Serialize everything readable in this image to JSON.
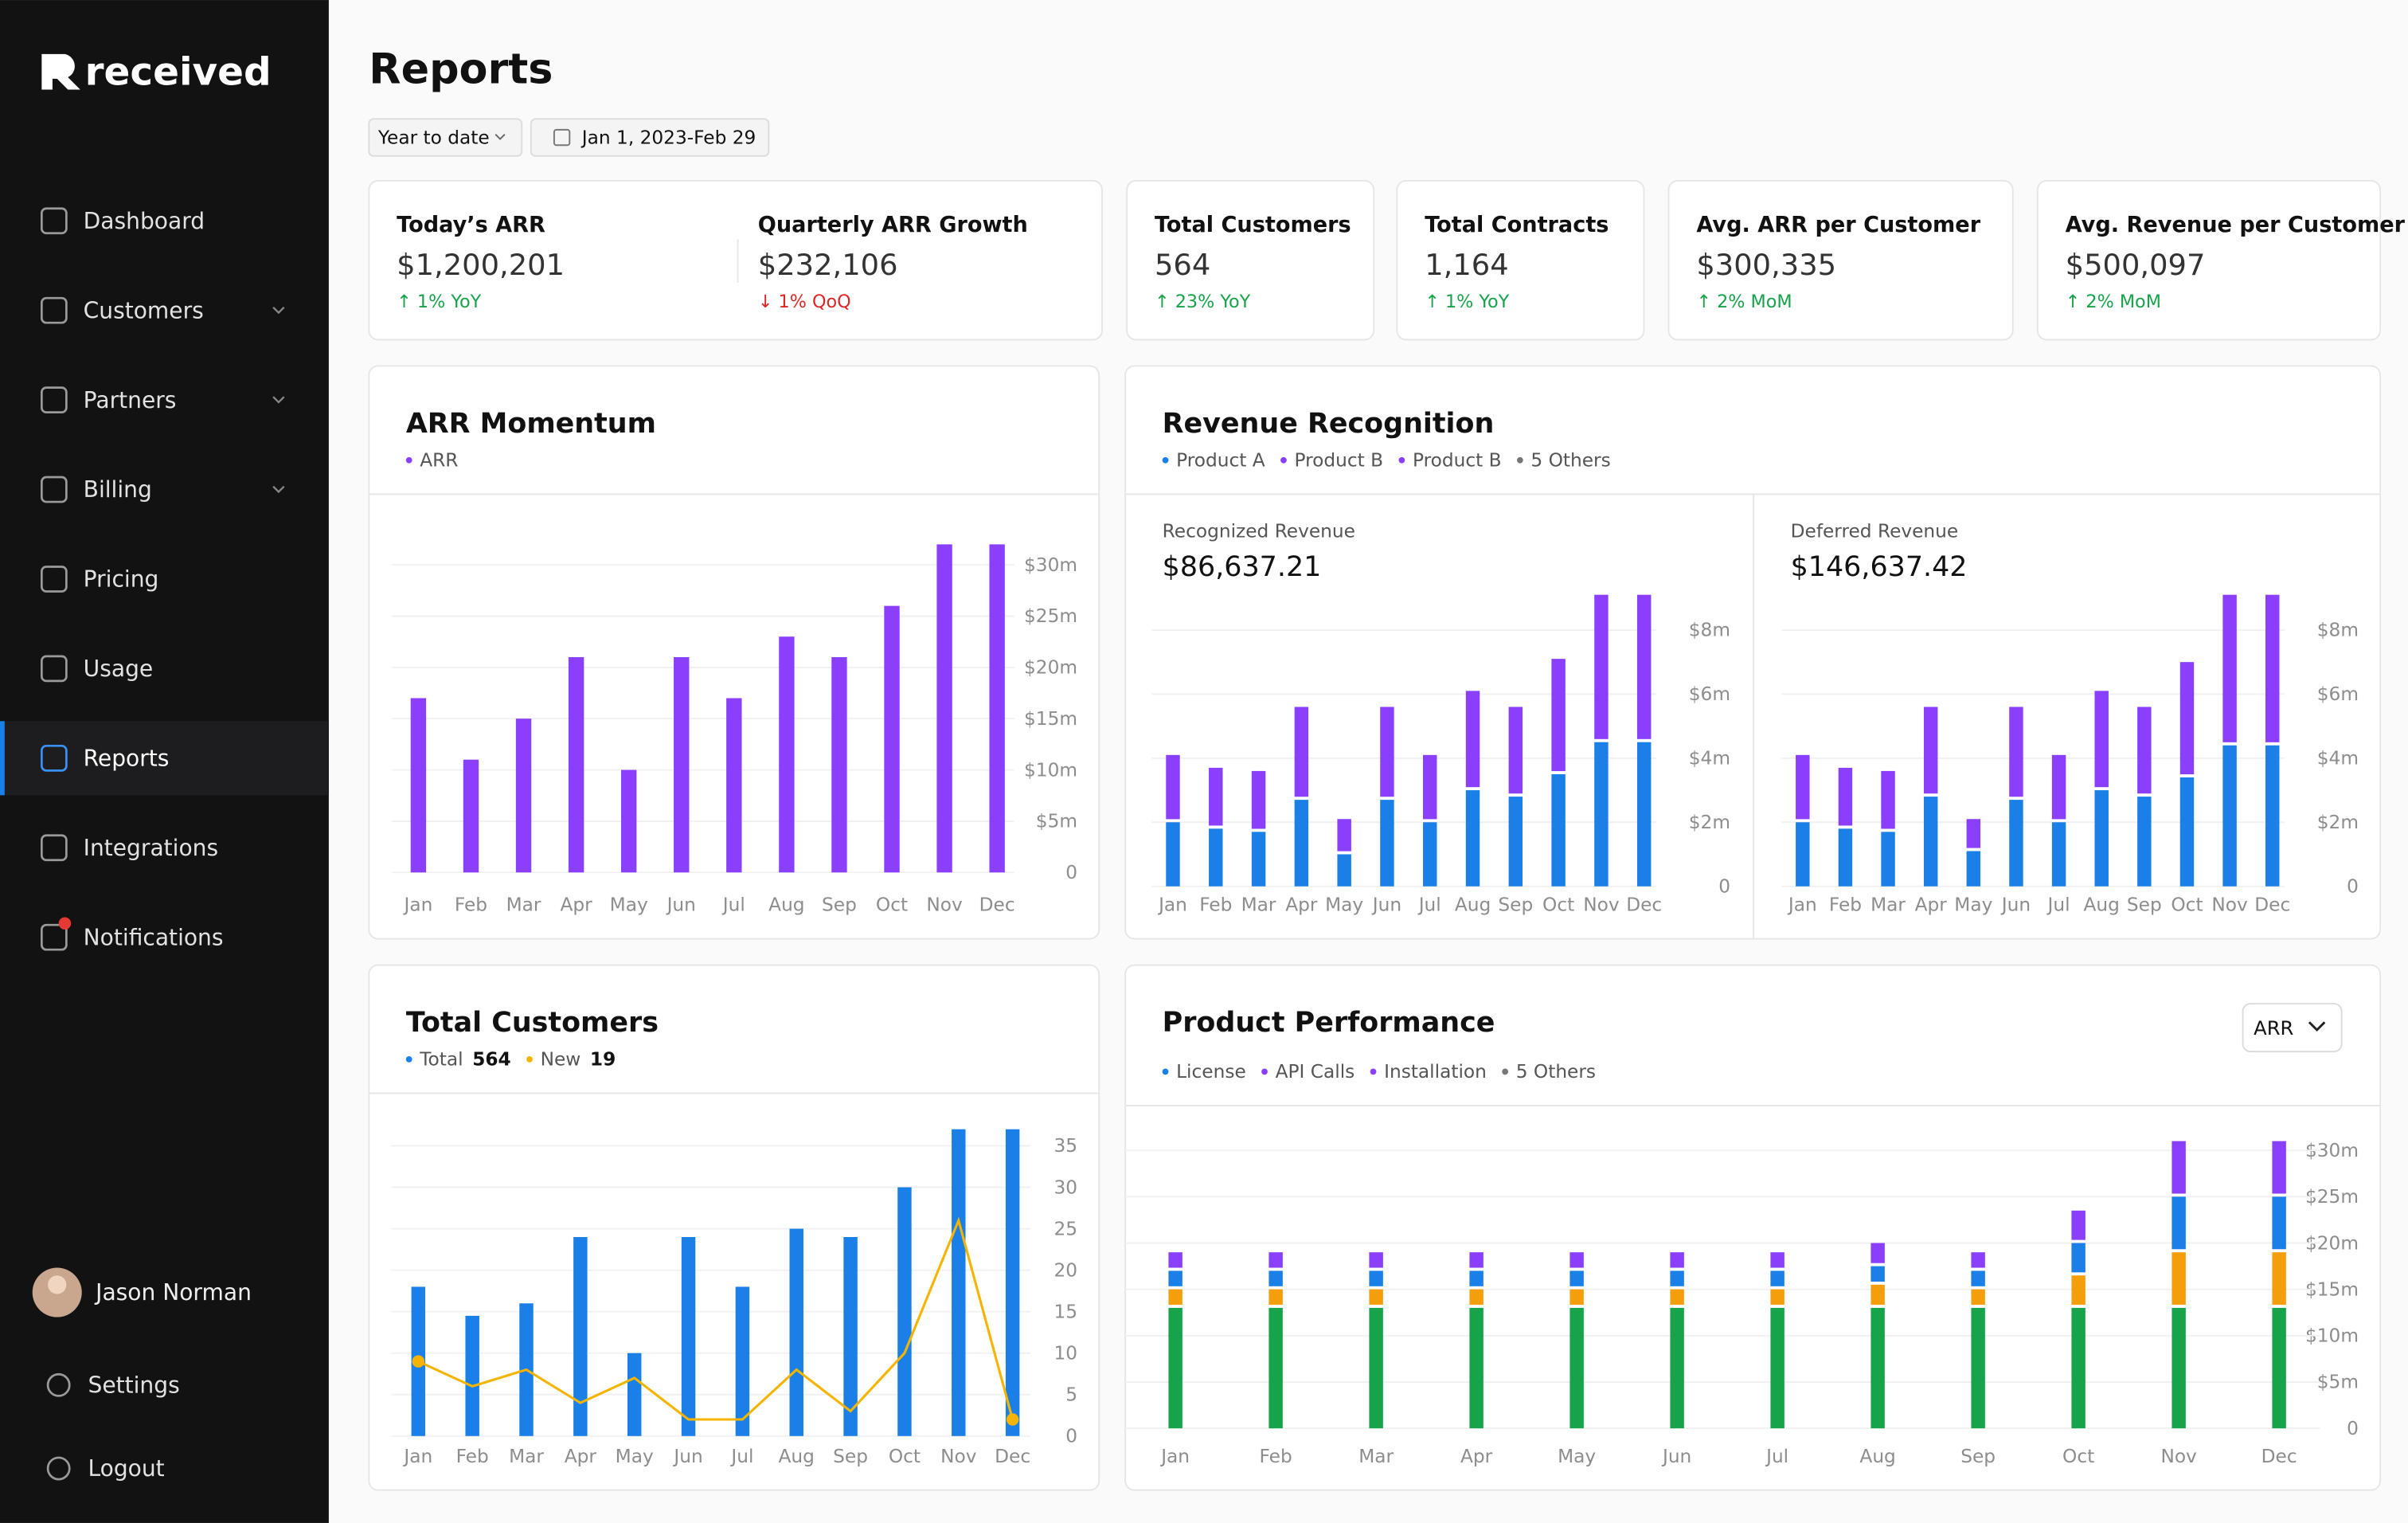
{
  "sidebar": {
    "brand": "received",
    "nav": [
      {
        "label": "Dashboard"
      },
      {
        "label": "Customers",
        "expandable": true
      },
      {
        "label": "Partners",
        "expandable": true
      },
      {
        "label": "Billing",
        "expandable": true
      },
      {
        "label": "Pricing"
      },
      {
        "label": "Usage"
      },
      {
        "label": "Reports",
        "active": true
      },
      {
        "label": "Integrations"
      },
      {
        "label": "Notifications",
        "badge": true
      }
    ],
    "user": "Jason Norman",
    "footer": [
      {
        "label": "Settings"
      },
      {
        "label": "Logout"
      }
    ]
  },
  "header": {
    "title": "Reports",
    "period": "Year to date",
    "date_range": "Jan 1, 2023-Feb 29"
  },
  "kpis": [
    {
      "metrics": [
        {
          "label": "Today’s ARR",
          "value": "$1,200,201",
          "change": "↑ 1% YoY",
          "trend": "up"
        },
        {
          "label": "Quarterly ARR Growth",
          "value": "$232,106",
          "change": "↓ 1% QoQ",
          "trend": "down"
        }
      ]
    },
    {
      "metrics": [
        {
          "label": "Total Customers",
          "value": "564",
          "change": "↑ 23% YoY",
          "trend": "up"
        }
      ]
    },
    {
      "metrics": [
        {
          "label": "Total Contracts",
          "value": "1,164",
          "change": "↑ 1% YoY",
          "trend": "up"
        }
      ]
    },
    {
      "metrics": [
        {
          "label": "Avg. ARR per Customer",
          "value": "$300,335",
          "change": "↑ 2% MoM",
          "trend": "up"
        }
      ]
    },
    {
      "metrics": [
        {
          "label": "Avg. Revenue per Customer",
          "value": "$500,097",
          "change": "↑ 2% MoM",
          "trend": "up"
        }
      ]
    }
  ],
  "chart_data": [
    {
      "type": "bar",
      "title": "ARR Momentum",
      "categories": [
        "Jan",
        "Feb",
        "Mar",
        "Apr",
        "May",
        "Jun",
        "Jul",
        "Aug",
        "Sep",
        "Oct",
        "Nov",
        "Dec"
      ],
      "series": [
        {
          "name": "ARR",
          "color": "#8a3ffc",
          "values": [
            17,
            11,
            15,
            21,
            10,
            21,
            17,
            23,
            21,
            26,
            32,
            32
          ]
        }
      ],
      "ylim": [
        0,
        32
      ],
      "yticks": [
        0,
        {
          "value": 5,
          "label": "$5m"
        },
        {
          "value": 10,
          "label": "$10m"
        },
        {
          "value": 15,
          "label": "$15m"
        },
        {
          "value": 20,
          "label": "$20m"
        },
        {
          "value": 25,
          "label": "$25m"
        },
        {
          "value": 30,
          "label": "$30m"
        }
      ],
      "grid": true
    },
    {
      "type": "stacked_bar",
      "title": "Revenue Recognition",
      "legend": [
        {
          "name": "Product A",
          "color": "#1a7fe6"
        },
        {
          "name": "Product B",
          "color": "#8a3ffc"
        },
        {
          "name": "Product B",
          "color": "#8a3ffc"
        },
        {
          "name": "5 Others",
          "color": "#777777"
        }
      ],
      "panels": [
        {
          "label": "Recognized Revenue",
          "total": "$86,637.21",
          "categories": [
            "Jan",
            "Feb",
            "Mar",
            "Apr",
            "May",
            "Jun",
            "Jul",
            "Aug",
            "Sep",
            "Oct",
            "Nov",
            "Dec"
          ],
          "series": [
            {
              "color": "#1a7fe6",
              "values": [
                2.0,
                1.8,
                1.7,
                2.7,
                1.0,
                2.7,
                2.0,
                3.0,
                2.8,
                3.5,
                4.5,
                4.5
              ]
            },
            {
              "color": "#8a3ffc",
              "values": [
                2.1,
                1.9,
                1.9,
                2.9,
                1.1,
                2.9,
                2.1,
                3.1,
                2.8,
                3.6,
                4.6,
                4.6
              ]
            }
          ],
          "ylim": [
            0,
            9.2
          ],
          "yticks": [
            0,
            {
              "value": 2,
              "label": "$2m"
            },
            {
              "value": 4,
              "label": "$4m"
            },
            {
              "value": 6,
              "label": "$6m"
            },
            {
              "value": 8,
              "label": "$8m"
            }
          ],
          "grid": true
        },
        {
          "label": "Deferred Revenue",
          "total": "$146,637.42",
          "categories": [
            "Jan",
            "Feb",
            "Mar",
            "Apr",
            "May",
            "Jun",
            "Jul",
            "Aug",
            "Sep",
            "Oct",
            "Nov",
            "Dec"
          ],
          "series": [
            {
              "color": "#1a7fe6",
              "values": [
                2.0,
                1.8,
                1.7,
                2.8,
                1.1,
                2.7,
                2.0,
                3.0,
                2.8,
                3.4,
                4.4,
                4.4
              ]
            },
            {
              "color": "#8a3ffc",
              "values": [
                2.1,
                1.9,
                1.9,
                2.8,
                1.0,
                2.9,
                2.1,
                3.1,
                2.8,
                3.6,
                4.7,
                4.7
              ]
            }
          ],
          "ylim": [
            0,
            9.2
          ],
          "yticks": [
            0,
            {
              "value": 2,
              "label": "$2m"
            },
            {
              "value": 4,
              "label": "$4m"
            },
            {
              "value": 6,
              "label": "$6m"
            },
            {
              "value": 8,
              "label": "$8m"
            }
          ],
          "grid": true
        }
      ]
    },
    {
      "type": "bar_line",
      "title": "Total Customers",
      "categories": [
        "Jan",
        "Feb",
        "Mar",
        "Apr",
        "May",
        "Jun",
        "Jul",
        "Aug",
        "Sep",
        "Oct",
        "Nov",
        "Dec"
      ],
      "series": [
        {
          "name": "Total",
          "total": 564,
          "color": "#1a7fe6",
          "values": [
            18,
            14.5,
            16,
            24,
            10,
            24,
            18,
            25,
            24,
            30,
            37,
            37
          ]
        },
        {
          "name": "New",
          "total": 19,
          "color": "#f5b400",
          "type": "line",
          "values": [
            9,
            6,
            8,
            4,
            7,
            2,
            2,
            8,
            3,
            10,
            26,
            2
          ]
        }
      ],
      "ylim": [
        0,
        37
      ],
      "yticks": [
        0,
        5,
        10,
        15,
        20,
        25,
        30,
        35
      ],
      "grid": true
    },
    {
      "type": "stacked_bar",
      "title": "Product Performance",
      "selector": "ARR",
      "legend": [
        {
          "name": "License",
          "color": "#1a7fe6"
        },
        {
          "name": "API Calls",
          "color": "#8a3ffc"
        },
        {
          "name": "Installation",
          "color": "#8a3ffc"
        },
        {
          "name": "5 Others",
          "color": "#777777"
        }
      ],
      "categories": [
        "Jan",
        "Feb",
        "Mar",
        "Apr",
        "May",
        "Jun",
        "Jul",
        "Aug",
        "Sep",
        "Oct",
        "Nov",
        "Dec"
      ],
      "series": [
        {
          "color": "#16a34a",
          "values": [
            13,
            13,
            13,
            13,
            13,
            13,
            13,
            13,
            13,
            13,
            13,
            13
          ]
        },
        {
          "color": "#f59e0b",
          "values": [
            2,
            2,
            2,
            2,
            2,
            2,
            2,
            2.5,
            2,
            3.5,
            6,
            6
          ]
        },
        {
          "color": "#1a7fe6",
          "values": [
            2,
            2,
            2,
            2,
            2,
            2,
            2,
            2,
            2,
            3.5,
            6,
            6
          ]
        },
        {
          "color": "#8a3ffc",
          "values": [
            2,
            2,
            2,
            2,
            2,
            2,
            2,
            2.5,
            2,
            3.5,
            6,
            6
          ]
        }
      ],
      "ylim": [
        0,
        32
      ],
      "yticks": [
        0,
        {
          "value": 5,
          "label": "$5m"
        },
        {
          "value": 10,
          "label": "$10m"
        },
        {
          "value": 15,
          "label": "$15m"
        },
        {
          "value": 20,
          "label": "$20m"
        },
        {
          "value": 25,
          "label": "$25m"
        },
        {
          "value": 30,
          "label": "$30m"
        }
      ],
      "grid": true
    }
  ]
}
